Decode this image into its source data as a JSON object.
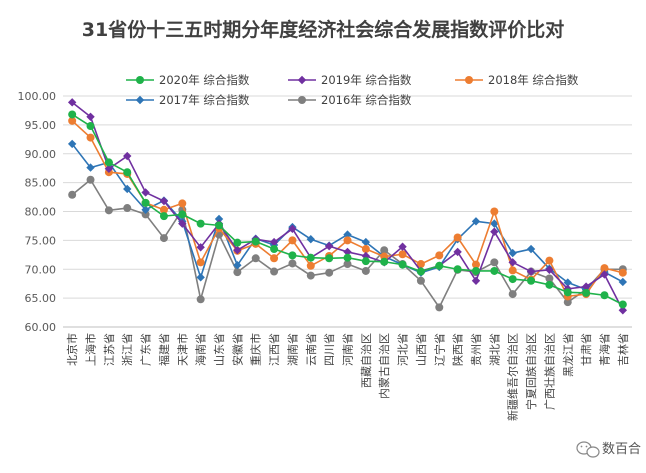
{
  "chart_data": {
    "type": "line",
    "title": "31省份十三五时期分年度经济社会综合发展指数评价比对",
    "categories": [
      "北京市",
      "上海市",
      "江苏省",
      "浙江省",
      "广东省",
      "福建省",
      "天津市",
      "海南省",
      "山东省",
      "安徽省",
      "重庆市",
      "江西省",
      "湖南省",
      "云南省",
      "四川省",
      "河南省",
      "西藏自治区",
      "内蒙古自治区",
      "河北省",
      "山西省",
      "辽宁省",
      "陕西省",
      "贵州省",
      "湖北省",
      "新疆维吾尔自治区",
      "宁夏回族自治区",
      "广西壮族自治区",
      "黑龙江省",
      "甘肃省",
      "青海省",
      "吉林省"
    ],
    "ylim": [
      60,
      100
    ],
    "yticks": [
      "60.00",
      "65.00",
      "70.00",
      "75.00",
      "80.00",
      "85.00",
      "90.00",
      "95.00",
      "100.00"
    ],
    "grid": true,
    "legend_position": "top",
    "series": [
      {
        "name": "2020年 综合指数",
        "color": "#1fb24a",
        "marker": "circle",
        "values": [
          96.8,
          94.8,
          88.5,
          86.8,
          81.5,
          79.2,
          79.5,
          77.9,
          77.6,
          74.6,
          74.8,
          73.5,
          72.4,
          72.0,
          71.9,
          72.0,
          71.4,
          71.3,
          70.8,
          69.6,
          70.6,
          70.0,
          69.7,
          69.7,
          68.3,
          68.0,
          67.3,
          66.0,
          65.9,
          65.5,
          63.9
        ]
      },
      {
        "name": "2019年 综合指数",
        "color": "#7030a0",
        "marker": "diamond",
        "values": [
          98.9,
          96.4,
          87.4,
          89.6,
          83.3,
          81.8,
          77.9,
          73.8,
          77.9,
          73.3,
          75.2,
          74.7,
          77.0,
          72.0,
          74.0,
          73.0,
          72.3,
          71.2,
          73.9,
          69.7,
          70.6,
          73.0,
          68.0,
          76.5,
          71.2,
          69.6,
          69.9,
          66.6,
          67.0,
          69.1,
          62.9
        ]
      },
      {
        "name": "2018年 综合指数",
        "color": "#ed7d31",
        "marker": "circle",
        "values": [
          95.7,
          92.8,
          86.8,
          86.5,
          81.5,
          80.3,
          81.4,
          71.2,
          77.1,
          73.2,
          74.4,
          71.9,
          75.0,
          70.6,
          72.3,
          75.0,
          73.5,
          72.2,
          72.6,
          70.9,
          72.4,
          75.5,
          70.8,
          80.0,
          69.8,
          68.2,
          71.5,
          65.3,
          65.7,
          70.2,
          69.4
        ]
      },
      {
        "name": "2017年 综合指数",
        "color": "#2e75b6",
        "marker": "diamond",
        "values": [
          91.7,
          87.6,
          88.5,
          83.9,
          80.3,
          81.9,
          78.3,
          68.6,
          78.7,
          70.7,
          75.3,
          74.2,
          77.3,
          75.2,
          74.1,
          76.0,
          74.7,
          72.2,
          70.8,
          69.4,
          70.4,
          75.2,
          78.3,
          77.9,
          72.8,
          73.5,
          70.1,
          67.7,
          66.5,
          69.5,
          67.8
        ]
      },
      {
        "name": "2016年 综合指数",
        "color": "#7f7f7f",
        "marker": "circle",
        "values": [
          82.9,
          85.5,
          80.2,
          80.6,
          79.5,
          75.4,
          80.3,
          64.8,
          76.0,
          69.5,
          71.9,
          69.6,
          71.0,
          68.9,
          69.4,
          70.9,
          69.7,
          73.3,
          70.9,
          68.0,
          63.4,
          69.9,
          69.5,
          71.2,
          65.7,
          69.6,
          68.4,
          64.3,
          66.5,
          70.0,
          70.0
        ]
      }
    ]
  },
  "watermark": {
    "icon": "wechat-icon",
    "text": "数百合"
  }
}
